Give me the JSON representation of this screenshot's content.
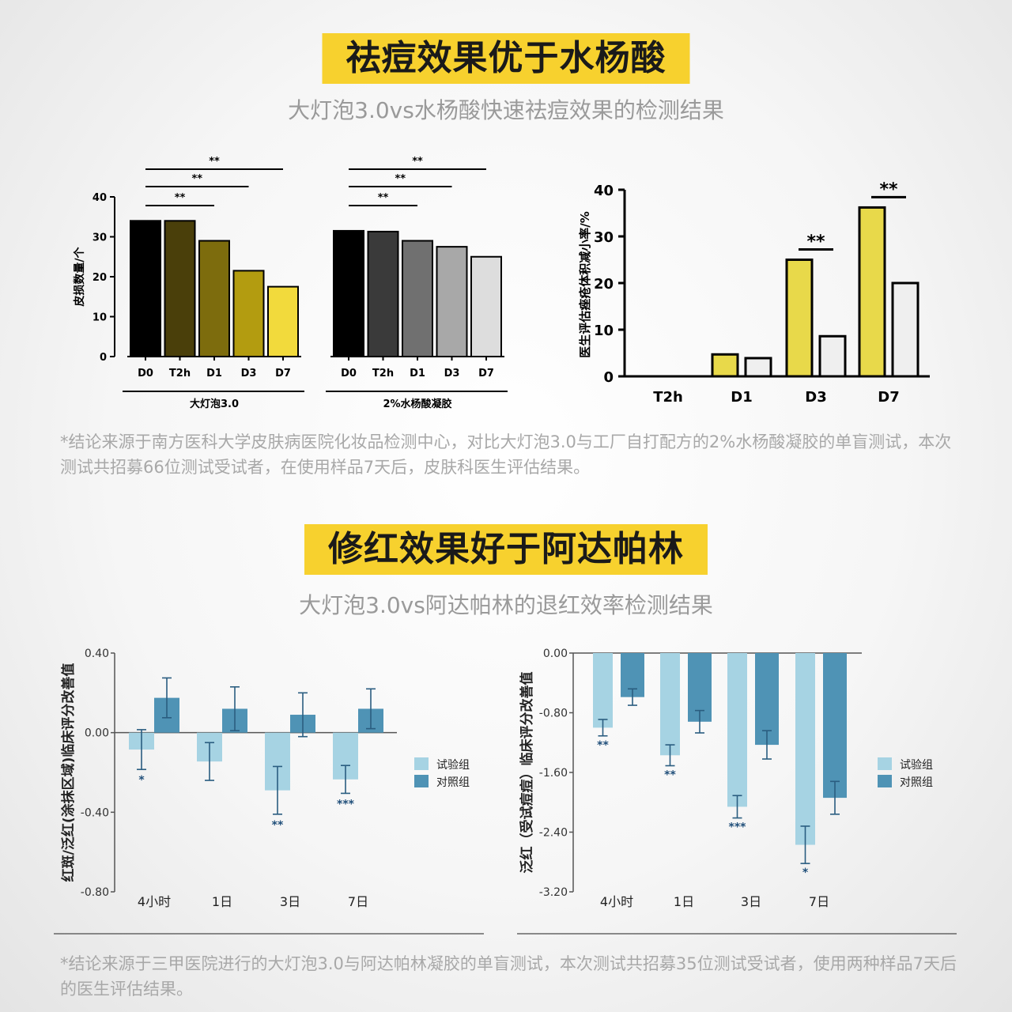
{
  "section1": {
    "title": "祛痘效果优于水杨酸",
    "subtitle": "大灯泡3.0vs水杨酸快速祛痘效果的检测结果",
    "note": "*结论来源于南方医科大学皮肤病医院化妆品检测中心，对比大灯泡3.0与工厂自打配方的2%水杨酸凝胶的单盲测试，本次测试共招募66位测试受试者，在使用样品7天后，皮肤科医生评估结果。"
  },
  "section2": {
    "title": "修红效果好于阿达帕林",
    "subtitle": "大灯泡3.0vs阿达帕林的退红效率检测结果",
    "note": "*结论来源于三甲医院进行的大灯泡3.0与阿达帕林凝胶的单盲测试，本次测试共招募35位测试受试者，使用两种样品7天后的医生评估结果。"
  },
  "chart_data": [
    {
      "type": "bar",
      "ylabel": "皮损数量/个",
      "ylim": [
        0,
        40
      ],
      "yticks": [
        0,
        10,
        20,
        30,
        40
      ],
      "groups": [
        {
          "name": "大灯泡3.0",
          "categories": [
            "D0",
            "T2h",
            "D1",
            "D3",
            "D7"
          ],
          "values": [
            34,
            34,
            29,
            21.5,
            17.5
          ],
          "colors": [
            "#000000",
            "#4a3f0a",
            "#7d6c0d",
            "#b39c10",
            "#f2da3c"
          ],
          "brackets": [
            {
              "from": "D0",
              "to": "D3",
              "label": "**"
            },
            {
              "from": "D0",
              "to": "D7",
              "label": "**"
            },
            {
              "from": "D0",
              "to": "D1",
              "label": "**"
            }
          ]
        },
        {
          "name": "2%水杨酸凝胶",
          "categories": [
            "D0",
            "T2h",
            "D1",
            "D3",
            "D7"
          ],
          "values": [
            31.5,
            31.3,
            29,
            27.5,
            25
          ],
          "colors": [
            "#000000",
            "#3a3a3a",
            "#707070",
            "#a8a8a8",
            "#dddddd"
          ],
          "brackets": [
            {
              "from": "D0",
              "to": "D3",
              "label": "**"
            },
            {
              "from": "D0",
              "to": "D7",
              "label": "**"
            },
            {
              "from": "D0",
              "to": "D1",
              "label": "**"
            }
          ]
        }
      ]
    },
    {
      "type": "bar",
      "ylabel": "医生评估痤疮体积减小率/%",
      "ylim": [
        0,
        40
      ],
      "yticks": [
        0,
        10,
        20,
        30,
        40
      ],
      "categories": [
        "T2h",
        "D1",
        "D3",
        "D7"
      ],
      "series": [
        {
          "values": [
            0,
            4.7,
            25,
            36.2
          ],
          "color": "#e8d94a"
        },
        {
          "values": [
            0,
            3.9,
            8.6,
            20
          ],
          "color": "#efefef"
        }
      ],
      "significance": [
        {
          "category": "D3",
          "label": "**"
        },
        {
          "category": "D7",
          "label": "**"
        }
      ]
    },
    {
      "type": "bar",
      "ylabel": "红斑/泛红(涂抹区域)临床评分改善值",
      "ylim": [
        -0.8,
        0.4
      ],
      "yticks": [
        -0.8,
        -0.4,
        0,
        0.4
      ],
      "ytick_labels": [
        "-0.80",
        "-0.40",
        "0.00",
        "0.40"
      ],
      "categories": [
        "4小时",
        "1日",
        "3日",
        "7日"
      ],
      "series": [
        {
          "name": "试验组",
          "values": [
            -0.085,
            -0.145,
            -0.29,
            -0.235
          ],
          "errors": [
            0.1,
            0.095,
            0.12,
            0.07
          ],
          "color": "#a6d3e3"
        },
        {
          "name": "对照组",
          "values": [
            0.175,
            0.12,
            0.09,
            0.12
          ],
          "errors": [
            0.1,
            0.11,
            0.11,
            0.1
          ],
          "color": "#4f93b5"
        }
      ],
      "significance": [
        "*",
        "",
        "**",
        "***"
      ]
    },
    {
      "type": "bar",
      "ylabel": "泛红（受试痘痘）临床评分改善值",
      "ylim": [
        -3.2,
        0
      ],
      "yticks": [
        -3.2,
        -2.4,
        -1.6,
        -0.8,
        0
      ],
      "ytick_labels": [
        "-3.20",
        "-2.40",
        "-1.60",
        "-0.80",
        "0.00"
      ],
      "categories": [
        "4小时",
        "1日",
        "3日",
        "7日"
      ],
      "series": [
        {
          "name": "试验组",
          "values": [
            -1.0,
            -1.37,
            -2.06,
            -2.57
          ],
          "errors": [
            0.11,
            0.14,
            0.15,
            0.25
          ],
          "color": "#a6d3e3"
        },
        {
          "name": "对照组",
          "values": [
            -0.59,
            -0.92,
            -1.23,
            -1.94
          ],
          "errors": [
            0.11,
            0.15,
            0.19,
            0.22
          ],
          "color": "#4f93b5"
        }
      ],
      "significance": [
        "**",
        "**",
        "***",
        "*"
      ]
    }
  ]
}
